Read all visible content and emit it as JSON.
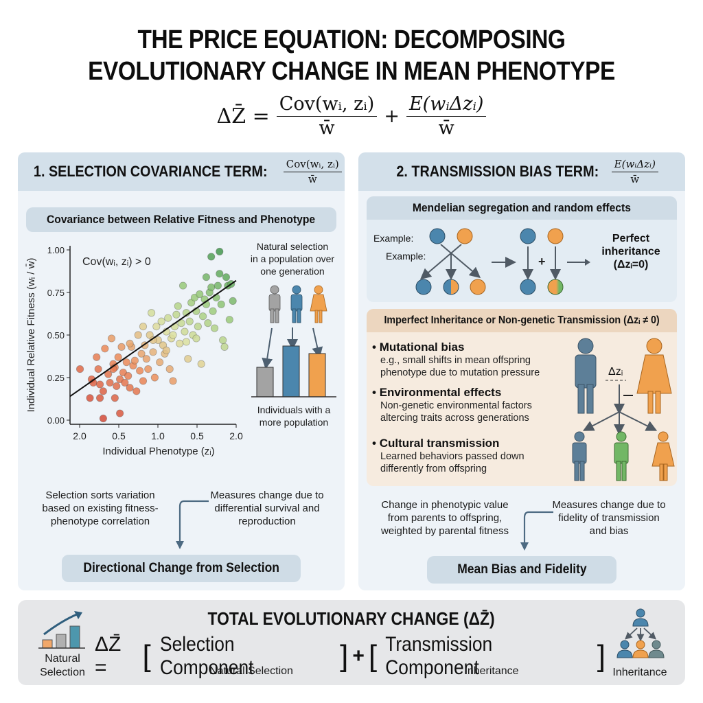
{
  "header": {
    "title_line1": "THE PRICE EQUATION: DECOMPOSING",
    "title_line2": "EVOLUTIONARY CHANGE IN MEAN PHENOTYPE",
    "equation": {
      "lhs": "ΔZ̄ =",
      "term1_num": "Cov(wᵢ, zᵢ)",
      "term1_den": "w̄",
      "plus": "+",
      "term2_num": "E(wᵢΔzᵢ)",
      "term2_den": "w̄"
    }
  },
  "panel1": {
    "heading": "1. SELECTION COVARIANCE TERM:",
    "heading_num": "Cov(wᵢ, zᵢ)",
    "heading_den": "w̄",
    "subheading": "Covariance between Relative Fitness and Phenotype",
    "illustration": {
      "caption_top": [
        "Natural selection",
        "in a population over",
        "one generation"
      ],
      "caption_bottom": [
        "Individuals with a",
        "more population"
      ]
    },
    "note_left": [
      "Selection sorts variation",
      "based on existing fitness-",
      "phenotype correlation"
    ],
    "note_right": [
      "Measures change due to",
      "differential survival and",
      "reproduction"
    ],
    "result": "Directional Change from Selection"
  },
  "panel2": {
    "heading": "2. TRANSMISSION BIAS TERM:",
    "heading_num": "E(wᵢΔzᵢ)",
    "heading_den": "w̄",
    "mendelian": {
      "title": "Mendelian segregation and random effects",
      "example_label_1": "Example:",
      "example_label_2": "Example:",
      "plus": "+",
      "result_lines": [
        "Perfect",
        "inheritance",
        "(Δzᵢ=0)"
      ]
    },
    "imperfect": {
      "title": "Imperfect Inheritance or Non-genetic Transmission (Δzᵢ ≠ 0)",
      "bullets": [
        {
          "title": "Mutational bias",
          "lines": [
            "e.g., small shifts in mean offspring",
            "phenotype due to mutation pressure"
          ]
        },
        {
          "title": "Environmental effects",
          "lines": [
            "Non-genetic environmental factors",
            "altercing traits across generations"
          ]
        },
        {
          "title": "Cultural transmission",
          "lines": [
            "Learned behaviors passed down",
            "differently from offspring"
          ]
        }
      ],
      "delta_label": "Δzᵢ"
    },
    "note_left": [
      "Change in phenotypic value",
      "from parents to offspring,",
      "weighted by parental fitness"
    ],
    "note_right": [
      "Measures change due to",
      "fidelity of transmission",
      "and bias"
    ],
    "result": "Mean Bias and Fidelity"
  },
  "footer": {
    "title": "TOTAL EVOLUTIONARY CHANGE (ΔZ̄)",
    "lhs": "ΔZ̄ =",
    "selection_component": "Selection Component",
    "plus": "+",
    "transmission_component": "Transmission Component",
    "selection_sub": "Natural Selection",
    "transmission_sub": "Inheritance",
    "left_icon_label": [
      "Natural",
      "Selection"
    ],
    "right_icon_label": "Inheritance"
  },
  "colors": {
    "panel_bg": "#eef3f8",
    "panel_head": "#d3e0ea",
    "warm_box": "#f6ebdf",
    "warm_head": "#ecd6bf",
    "blue": "#4b86ad",
    "orange": "#f0a14e",
    "gray": "#a3a3a3",
    "green": "#72b765",
    "arrow": "#4d5f70"
  },
  "chart_data": {
    "type": "scatter",
    "title": "",
    "annotation": "Cov(wᵢ, zᵢ) > 0",
    "xlabel": "Individual Phenotype (zᵢ)",
    "ylabel": "Individual Relative Fitness (wᵢ / w̄)",
    "x_tick_labels": [
      "2.0",
      "0.5",
      "1.0",
      "0.5",
      "2.0"
    ],
    "y_tick_labels": [
      "0.00",
      "0.25",
      "0.50",
      "0.75",
      "1.00"
    ],
    "ylim": [
      0,
      1
    ],
    "xlim": [
      0,
      1
    ],
    "grid": false,
    "trend_line": {
      "x": [
        0,
        1
      ],
      "y": [
        0.14,
        0.82
      ]
    },
    "color_scale": "red (low fitness) to green (high fitness)",
    "points": [
      [
        0.06,
        0.3
      ],
      [
        0.13,
        0.24
      ],
      [
        0.14,
        0.22
      ],
      [
        0.16,
        0.37
      ],
      [
        0.17,
        0.3
      ],
      [
        0.18,
        0.21
      ],
      [
        0.2,
        0.17
      ],
      [
        0.21,
        0.42
      ],
      [
        0.23,
        0.27
      ],
      [
        0.24,
        0.22
      ],
      [
        0.25,
        0.48
      ],
      [
        0.26,
        0.33
      ],
      [
        0.27,
        0.31
      ],
      [
        0.28,
        0.2
      ],
      [
        0.29,
        0.37
      ],
      [
        0.3,
        0.24
      ],
      [
        0.31,
        0.43
      ],
      [
        0.32,
        0.28
      ],
      [
        0.33,
        0.22
      ],
      [
        0.34,
        0.34
      ],
      [
        0.35,
        0.26
      ],
      [
        0.36,
        0.19
      ],
      [
        0.37,
        0.43
      ],
      [
        0.38,
        0.32
      ],
      [
        0.39,
        0.35
      ],
      [
        0.4,
        0.17
      ],
      [
        0.41,
        0.5
      ],
      [
        0.42,
        0.29
      ],
      [
        0.43,
        0.39
      ],
      [
        0.44,
        0.23
      ],
      [
        0.45,
        0.44
      ],
      [
        0.46,
        0.36
      ],
      [
        0.47,
        0.3
      ],
      [
        0.48,
        0.5
      ],
      [
        0.49,
        0.63
      ],
      [
        0.5,
        0.4
      ],
      [
        0.51,
        0.25
      ],
      [
        0.52,
        0.55
      ],
      [
        0.53,
        0.47
      ],
      [
        0.54,
        0.34
      ],
      [
        0.55,
        0.58
      ],
      [
        0.56,
        0.44
      ],
      [
        0.57,
        0.39
      ],
      [
        0.58,
        0.52
      ],
      [
        0.59,
        0.6
      ],
      [
        0.6,
        0.3
      ],
      [
        0.61,
        0.48
      ],
      [
        0.62,
        0.23
      ],
      [
        0.63,
        0.55
      ],
      [
        0.64,
        0.62
      ],
      [
        0.65,
        0.67
      ],
      [
        0.66,
        0.45
      ],
      [
        0.67,
        0.57
      ],
      [
        0.68,
        0.79
      ],
      [
        0.69,
        0.52
      ],
      [
        0.7,
        0.63
      ],
      [
        0.71,
        0.36
      ],
      [
        0.72,
        0.58
      ],
      [
        0.73,
        0.69
      ],
      [
        0.74,
        0.5
      ],
      [
        0.75,
        0.72
      ],
      [
        0.76,
        0.64
      ],
      [
        0.77,
        0.55
      ],
      [
        0.78,
        0.74
      ],
      [
        0.79,
        0.33
      ],
      [
        0.8,
        0.61
      ],
      [
        0.81,
        0.71
      ],
      [
        0.82,
        0.68
      ],
      [
        0.83,
        0.57
      ],
      [
        0.84,
        0.75
      ],
      [
        0.85,
        0.78
      ],
      [
        0.86,
        0.64
      ],
      [
        0.87,
        0.54
      ],
      [
        0.88,
        0.72
      ],
      [
        0.89,
        0.79
      ],
      [
        0.9,
        0.86
      ],
      [
        0.91,
        0.68
      ],
      [
        0.92,
        0.47
      ],
      [
        0.93,
        0.43
      ],
      [
        0.94,
        0.84
      ],
      [
        0.95,
        0.79
      ],
      [
        0.96,
        0.59
      ],
      [
        0.97,
        0.8
      ],
      [
        0.82,
        0.84
      ],
      [
        0.85,
        0.96
      ],
      [
        0.9,
        0.99
      ],
      [
        0.98,
        0.7
      ],
      [
        0.12,
        0.13
      ],
      [
        0.18,
        0.13
      ],
      [
        0.27,
        0.13
      ],
      [
        0.2,
        0.01
      ],
      [
        0.3,
        0.04
      ],
      [
        0.26,
        0.3
      ],
      [
        0.36,
        0.45
      ],
      [
        0.44,
        0.55
      ],
      [
        0.58,
        0.41
      ],
      [
        0.7,
        0.46
      ],
      [
        0.76,
        0.48
      ],
      [
        0.62,
        0.5
      ],
      [
        0.5,
        0.47
      ]
    ]
  }
}
